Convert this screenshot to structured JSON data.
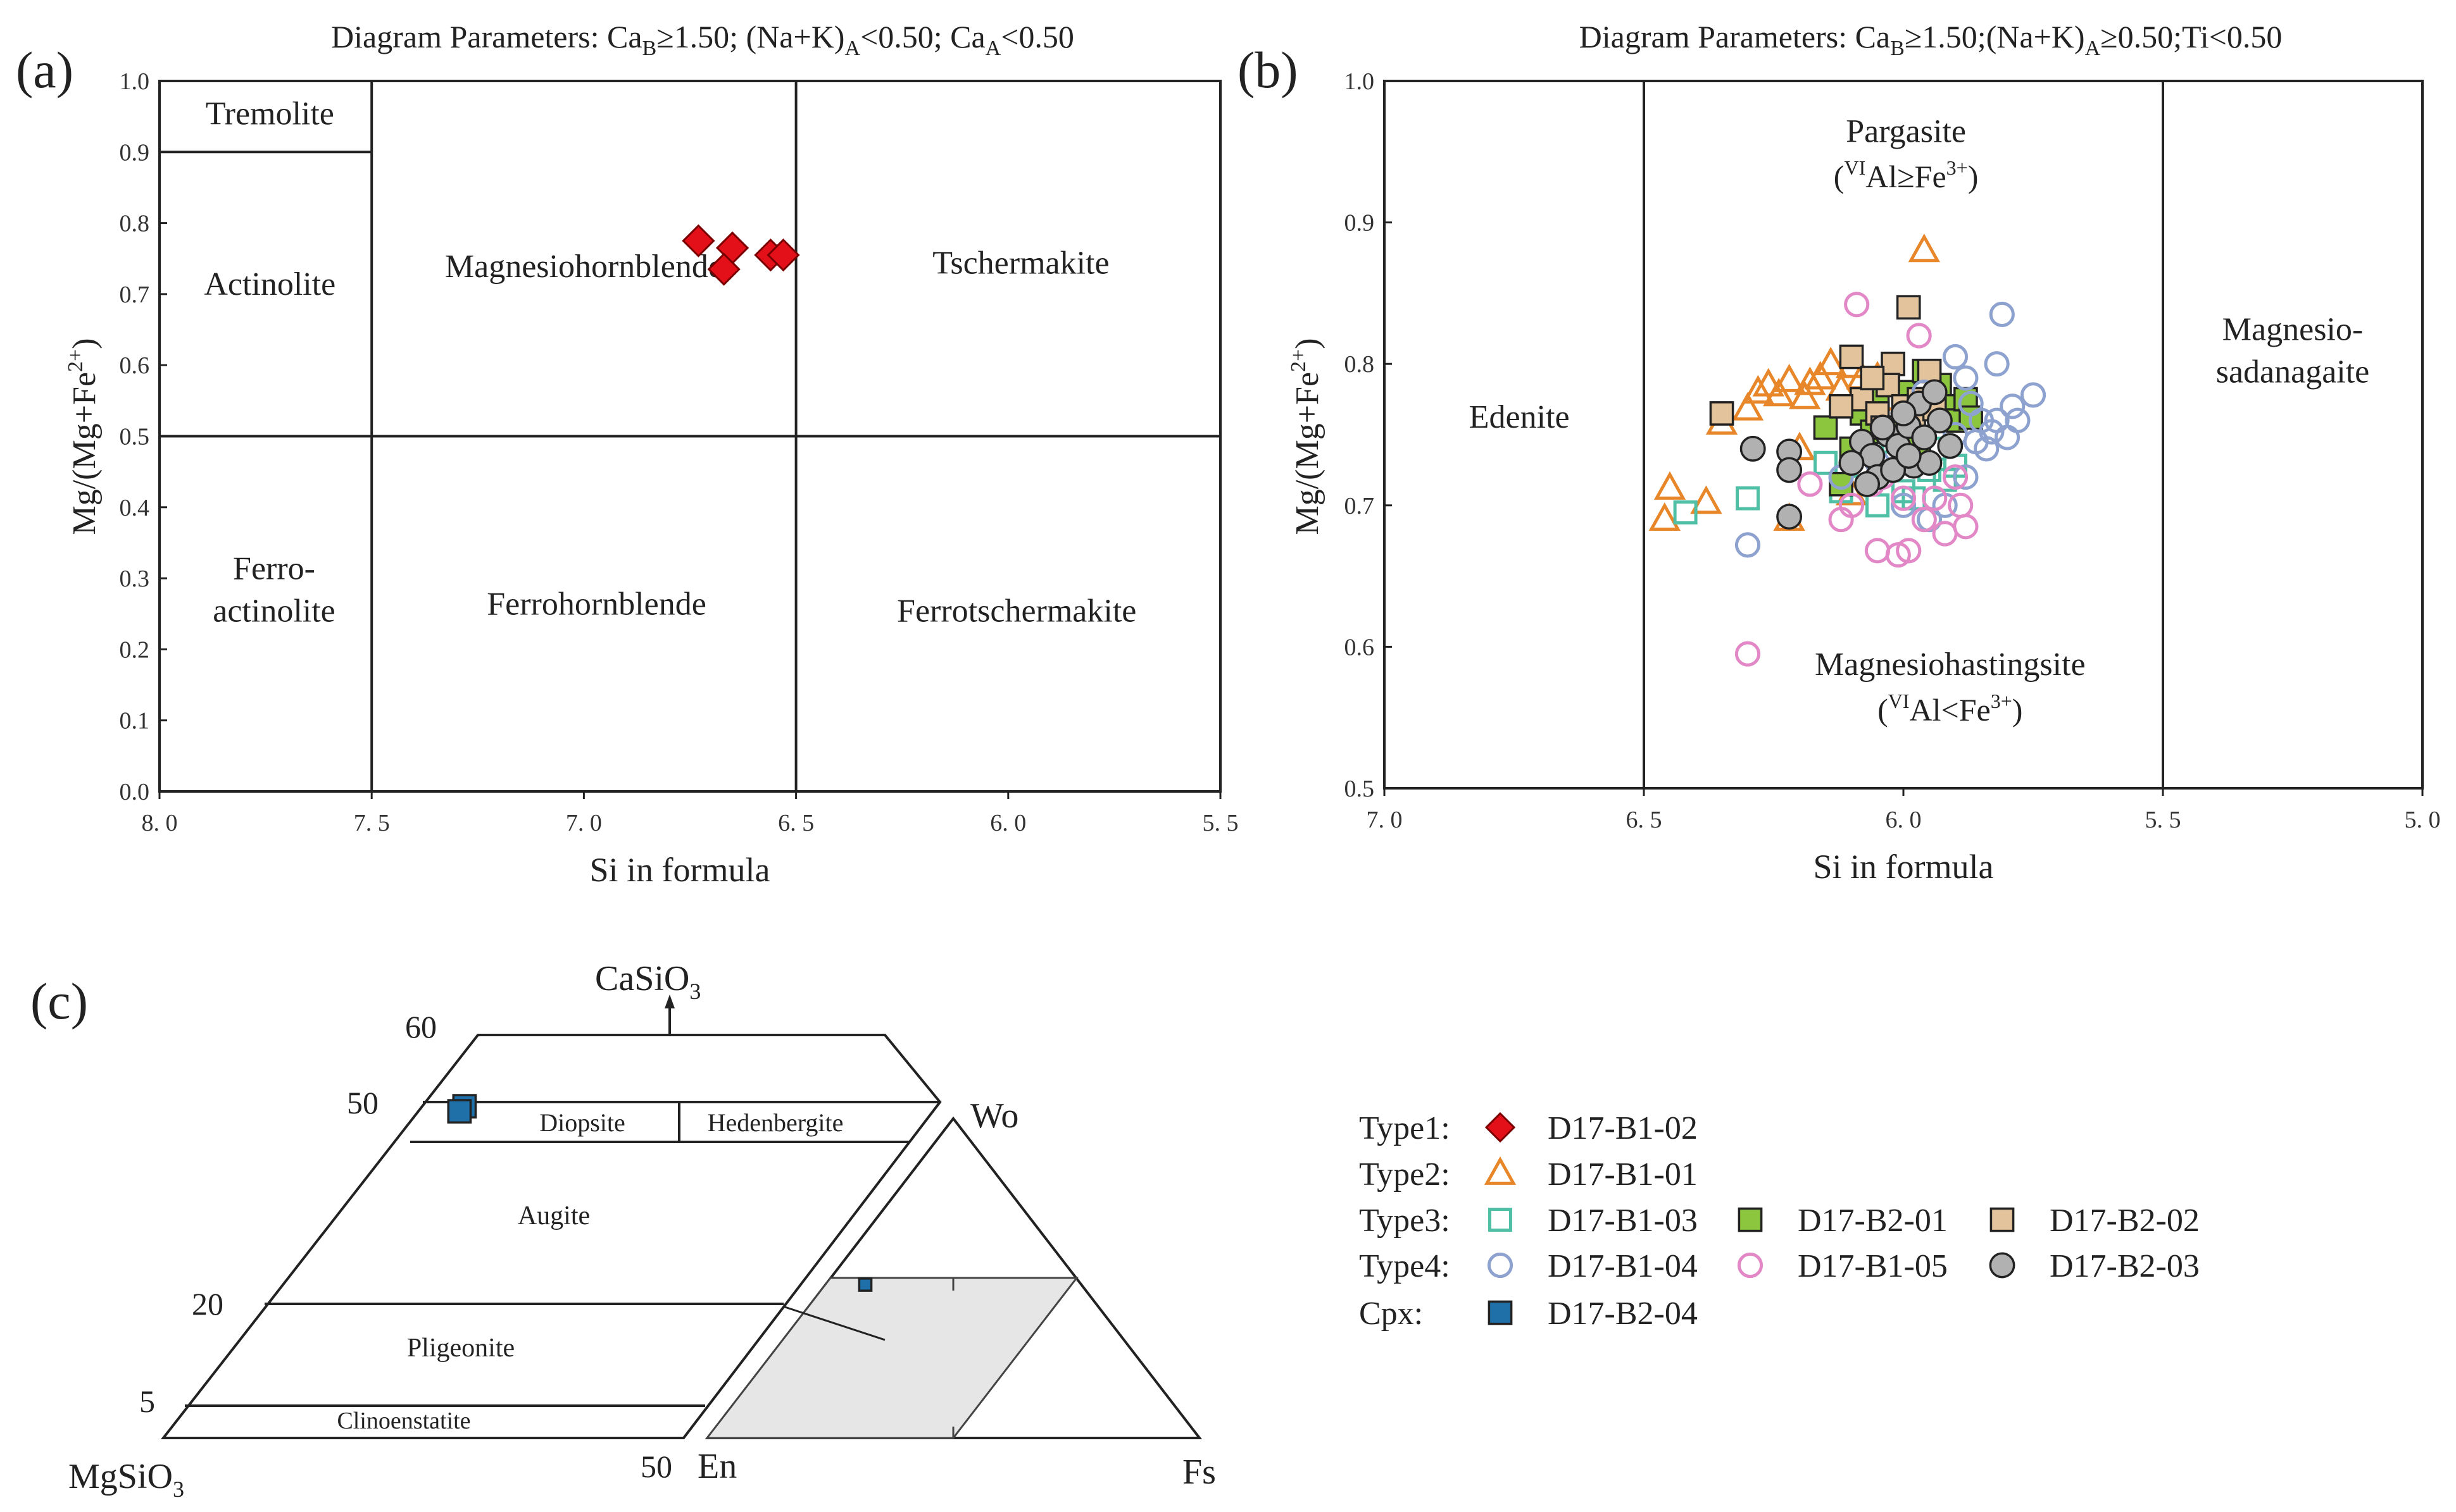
{
  "chart_data": [
    {
      "id": "a",
      "type": "scatter",
      "panel_label": "(a)",
      "title": "Diagram Parameters: Ca_B≥1.50; (Na+K)_A<0.50; Ca_A<0.50",
      "title_parts": {
        "pre": "Diagram Parameters: Ca",
        "s1": "B",
        "mid1": "≥1.50; (Na+K)",
        "s2": "A",
        "mid2": "<0.50; Ca",
        "s3": "A",
        "post": "<0.50"
      },
      "xlabel": "Si in formula",
      "ylabel_base": "Mg/(Mg+Fe",
      "ylabel_sup": "2+",
      "ylabel_end": ")",
      "xlim": [
        8.0,
        5.5
      ],
      "ylim": [
        0.0,
        1.0
      ],
      "xticks": [
        {
          "v": 8.0,
          "label": "8. 0"
        },
        {
          "v": 7.5,
          "label": "7. 5"
        },
        {
          "v": 7.0,
          "label": "7. 0"
        },
        {
          "v": 6.5,
          "label": "6. 5"
        },
        {
          "v": 6.0,
          "label": "6. 0"
        },
        {
          "v": 5.5,
          "label": "5. 5"
        }
      ],
      "yticks": [
        {
          "v": 0.0,
          "label": "0.0"
        },
        {
          "v": 0.1,
          "label": "0.1"
        },
        {
          "v": 0.2,
          "label": "0.2"
        },
        {
          "v": 0.3,
          "label": "0.3"
        },
        {
          "v": 0.4,
          "label": "0.4"
        },
        {
          "v": 0.5,
          "label": "0.5"
        },
        {
          "v": 0.6,
          "label": "0.6"
        },
        {
          "v": 0.7,
          "label": "0.7"
        },
        {
          "v": 0.8,
          "label": "0.8"
        },
        {
          "v": 0.9,
          "label": "0.9"
        },
        {
          "v": 1.0,
          "label": "1.0"
        }
      ],
      "field_boundaries": [
        {
          "x1": 7.5,
          "y1": 0.0,
          "x2": 7.5,
          "y2": 1.0
        },
        {
          "x1": 6.5,
          "y1": 0.0,
          "x2": 6.5,
          "y2": 1.0
        },
        {
          "x1": 8.0,
          "y1": 0.5,
          "x2": 5.5,
          "y2": 0.5
        },
        {
          "x1": 8.0,
          "y1": 0.9,
          "x2": 7.5,
          "y2": 0.9
        }
      ],
      "field_labels": [
        {
          "text": "Tremolite",
          "x": 7.74,
          "y": 0.955
        },
        {
          "text": "Actinolite",
          "x": 7.74,
          "y": 0.715
        },
        {
          "text": "Ferro-",
          "x": 7.73,
          "y": 0.315
        },
        {
          "text": "actinolite",
          "x": 7.73,
          "y": 0.255
        },
        {
          "text": "Magnesiohornblende",
          "x": 7.0,
          "y": 0.74
        },
        {
          "text": "Ferrohornblende",
          "x": 6.97,
          "y": 0.265
        },
        {
          "text": "Tschermakite",
          "x": 5.97,
          "y": 0.745
        },
        {
          "text": "Ferrotschermakite",
          "x": 5.98,
          "y": 0.255
        }
      ],
      "series": [
        {
          "name": "D17-B1-02",
          "group": "Type1",
          "marker": "diamond",
          "color": "#e3101a",
          "points": [
            [
              6.73,
              0.775
            ],
            [
              6.65,
              0.765
            ],
            [
              6.67,
              0.735
            ],
            [
              6.56,
              0.755
            ],
            [
              6.53,
              0.755
            ]
          ]
        }
      ]
    },
    {
      "id": "b",
      "type": "scatter",
      "panel_label": "(b)",
      "title": "Diagram Parameters: Ca_B≥1.50;(Na+K)_A≥0.50;Ti<0.50",
      "title_parts": {
        "pre": "Diagram Parameters: Ca",
        "s1": "B",
        "mid1": "≥1.50;(Na+K)",
        "s2": "A",
        "post": "≥0.50;Ti<0.50"
      },
      "xlabel": "Si in formula",
      "ylabel_base": "Mg/(Mg+Fe",
      "ylabel_sup": "2+",
      "ylabel_end": ")",
      "xlim": [
        7.0,
        5.0
      ],
      "ylim": [
        0.5,
        1.0
      ],
      "xticks": [
        {
          "v": 7.0,
          "label": "7. 0"
        },
        {
          "v": 6.5,
          "label": "6. 5"
        },
        {
          "v": 6.0,
          "label": "6. 0"
        },
        {
          "v": 5.5,
          "label": "5. 5"
        },
        {
          "v": 5.0,
          "label": "5. 0"
        }
      ],
      "yticks": [
        {
          "v": 0.5,
          "label": "0.5"
        },
        {
          "v": 0.6,
          "label": "0.6"
        },
        {
          "v": 0.7,
          "label": "0.7"
        },
        {
          "v": 0.8,
          "label": "0.8"
        },
        {
          "v": 0.9,
          "label": "0.9"
        },
        {
          "v": 1.0,
          "label": "1.0"
        }
      ],
      "field_boundaries": [
        {
          "x1": 6.5,
          "y1": 0.5,
          "x2": 6.5,
          "y2": 1.0
        },
        {
          "x1": 5.5,
          "y1": 0.5,
          "x2": 5.5,
          "y2": 1.0
        }
      ],
      "field_labels": [
        {
          "text": "Edenite",
          "x": 6.74,
          "y": 0.763
        },
        {
          "text": "Pargasite",
          "x": 5.995,
          "y": 0.965
        },
        {
          "text": "Magnesiohastingsite",
          "x": 5.91,
          "y": 0.588
        },
        {
          "text": "Magnesio-",
          "x": 5.25,
          "y": 0.825
        },
        {
          "text": "sadanagaite",
          "x": 5.25,
          "y": 0.795
        }
      ],
      "field_sublabels": [
        {
          "pre": "(",
          "sup": "VI",
          "mid": "Al≥Fe",
          "sup2": "3+",
          "post": ")",
          "x": 5.995,
          "y": 0.932
        },
        {
          "pre": "(",
          "sup": "VI",
          "mid": "Al<Fe",
          "sup2": "3+",
          "post": ")",
          "x": 5.91,
          "y": 0.555
        }
      ],
      "series": [
        {
          "name": "D17-B1-01",
          "group": "Type2",
          "marker": "triangle-open",
          "color": "#e8862a",
          "points": [
            [
              6.45,
              0.712
            ],
            [
              6.46,
              0.69
            ],
            [
              6.38,
              0.702
            ],
            [
              6.3,
              0.768
            ],
            [
              6.28,
              0.78
            ],
            [
              6.26,
              0.785
            ],
            [
              6.24,
              0.778
            ],
            [
              6.22,
              0.788
            ],
            [
              6.19,
              0.776
            ],
            [
              6.18,
              0.786
            ],
            [
              6.16,
              0.79
            ],
            [
              6.14,
              0.8
            ],
            [
              6.12,
              0.782
            ],
            [
              6.1,
              0.798
            ],
            [
              6.08,
              0.79
            ],
            [
              6.05,
              0.79
            ],
            [
              6.03,
              0.775
            ],
            [
              6.22,
              0.69
            ],
            [
              6.1,
              0.708
            ],
            [
              6.35,
              0.758
            ],
            [
              5.96,
              0.88
            ],
            [
              6.2,
              0.74
            ]
          ]
        },
        {
          "name": "D17-B1-03",
          "group": "Type3",
          "marker": "square-open",
          "color": "#4fbfa5",
          "points": [
            [
              6.3,
              0.705
            ],
            [
              6.42,
              0.695
            ],
            [
              6.12,
              0.71
            ],
            [
              6.05,
              0.7
            ],
            [
              6.0,
              0.71
            ],
            [
              5.95,
              0.725
            ],
            [
              5.92,
              0.718
            ],
            [
              5.9,
              0.728
            ],
            [
              6.08,
              0.728
            ],
            [
              6.15,
              0.73
            ],
            [
              6.02,
              0.745
            ],
            [
              5.94,
              0.74
            ],
            [
              5.98,
              0.705
            ],
            [
              6.06,
              0.74
            ]
          ]
        },
        {
          "name": "D17-B2-01",
          "group": "Type3",
          "marker": "square-filled",
          "color": "#8cc63f",
          "points": [
            [
              6.12,
              0.715
            ],
            [
              6.15,
              0.755
            ],
            [
              6.08,
              0.765
            ],
            [
              6.05,
              0.775
            ],
            [
              6.03,
              0.785
            ],
            [
              6.0,
              0.78
            ],
            [
              5.98,
              0.765
            ],
            [
              5.95,
              0.775
            ],
            [
              5.93,
              0.785
            ],
            [
              5.92,
              0.77
            ],
            [
              5.9,
              0.76
            ],
            [
              5.88,
              0.775
            ],
            [
              5.87,
              0.762
            ],
            [
              6.02,
              0.755
            ],
            [
              5.97,
              0.74
            ],
            [
              6.06,
              0.752
            ],
            [
              5.96,
              0.795
            ],
            [
              6.1,
              0.74
            ]
          ]
        },
        {
          "name": "D17-B2-02",
          "group": "Type3",
          "marker": "square-filled",
          "color": "#e3c39b",
          "points": [
            [
              6.35,
              0.765
            ],
            [
              6.1,
              0.805
            ],
            [
              6.02,
              0.8
            ],
            [
              5.99,
              0.84
            ],
            [
              5.95,
              0.795
            ],
            [
              6.08,
              0.775
            ],
            [
              6.05,
              0.765
            ],
            [
              6.03,
              0.785
            ],
            [
              6.0,
              0.77
            ],
            [
              5.98,
              0.76
            ],
            [
              6.06,
              0.79
            ],
            [
              5.97,
              0.775
            ],
            [
              6.12,
              0.77
            ],
            [
              6.04,
              0.755
            ],
            [
              5.94,
              0.768
            ]
          ]
        },
        {
          "name": "D17-B1-04",
          "group": "Type4",
          "marker": "circle-open",
          "color": "#8ea2cf",
          "points": [
            [
              6.3,
              0.672
            ],
            [
              5.81,
              0.835
            ],
            [
              5.82,
              0.8
            ],
            [
              5.79,
              0.77
            ],
            [
              5.75,
              0.778
            ],
            [
              5.9,
              0.805
            ],
            [
              5.88,
              0.79
            ],
            [
              5.85,
              0.76
            ],
            [
              5.84,
              0.74
            ],
            [
              5.8,
              0.748
            ],
            [
              5.83,
              0.752
            ],
            [
              5.86,
              0.745
            ],
            [
              5.88,
              0.72
            ],
            [
              5.92,
              0.7
            ],
            [
              5.95,
              0.69
            ],
            [
              5.9,
              0.75
            ],
            [
              6.05,
              0.73
            ],
            [
              6.12,
              0.72
            ],
            [
              5.82,
              0.76
            ],
            [
              5.87,
              0.772
            ],
            [
              5.78,
              0.76
            ],
            [
              5.96,
              0.78
            ],
            [
              6.0,
              0.7
            ]
          ]
        },
        {
          "name": "D17-B1-05",
          "group": "Type4",
          "marker": "circle-open",
          "color": "#e288c7",
          "points": [
            [
              6.3,
              0.595
            ],
            [
              6.09,
              0.842
            ],
            [
              5.97,
              0.82
            ],
            [
              6.05,
              0.668
            ],
            [
              6.01,
              0.665
            ],
            [
              5.99,
              0.668
            ],
            [
              5.92,
              0.68
            ],
            [
              5.88,
              0.685
            ],
            [
              5.89,
              0.7
            ],
            [
              5.94,
              0.705
            ],
            [
              6.0,
              0.705
            ],
            [
              6.06,
              0.715
            ],
            [
              6.12,
              0.69
            ],
            [
              6.1,
              0.7
            ],
            [
              6.04,
              0.72
            ],
            [
              5.9,
              0.72
            ],
            [
              6.18,
              0.715
            ],
            [
              5.96,
              0.69
            ]
          ]
        },
        {
          "name": "D17-B2-03",
          "group": "Type4",
          "marker": "circle-filled",
          "color": "#b1b1b1",
          "points": [
            [
              6.29,
              0.74
            ],
            [
              6.22,
              0.738
            ],
            [
              6.22,
              0.725
            ],
            [
              6.22,
              0.692
            ],
            [
              6.08,
              0.745
            ],
            [
              6.06,
              0.735
            ],
            [
              6.05,
              0.72
            ],
            [
              6.03,
              0.75
            ],
            [
              6.01,
              0.742
            ],
            [
              5.99,
              0.756
            ],
            [
              5.98,
              0.728
            ],
            [
              5.97,
              0.772
            ],
            [
              5.95,
              0.73
            ],
            [
              5.93,
              0.76
            ],
            [
              5.91,
              0.742
            ],
            [
              6.0,
              0.765
            ],
            [
              6.04,
              0.755
            ],
            [
              5.96,
              0.748
            ],
            [
              5.94,
              0.78
            ],
            [
              6.02,
              0.725
            ],
            [
              6.07,
              0.715
            ],
            [
              5.99,
              0.735
            ],
            [
              6.1,
              0.73
            ]
          ]
        }
      ]
    },
    {
      "id": "c",
      "type": "ternary",
      "panel_label": "(c)",
      "title": "CaSiO3",
      "quad_corner_labels": {
        "top": "CaSiO",
        "top_sub": "3",
        "left": "MgSiO",
        "left_sub": "3"
      },
      "quad_scale_labels": [
        "60",
        "50",
        "20",
        "5",
        "50"
      ],
      "quad_field_labels": [
        "Diopsite",
        "Hedenbergite",
        "Augite",
        "Pligeonite",
        "Clinoenstatite"
      ],
      "triangle_corner_labels": [
        "Wo",
        "En",
        "Fs"
      ],
      "series": [
        {
          "name": "D17-B2-04",
          "group": "Cpx",
          "marker": "square-filled",
          "color": "#1f6fa8",
          "composition": {
            "Wo": 49,
            "En": 46,
            "Fs": 5
          }
        }
      ]
    }
  ],
  "legend": {
    "rows": [
      {
        "label": "Type1:",
        "entries": [
          {
            "name": "D17-B1-02",
            "marker": "diamond",
            "color": "#e3101a"
          }
        ]
      },
      {
        "label": "Type2:",
        "entries": [
          {
            "name": "D17-B1-01",
            "marker": "triangle-open",
            "color": "#e8862a"
          }
        ]
      },
      {
        "label": "Type3:",
        "entries": [
          {
            "name": "D17-B1-03",
            "marker": "square-open",
            "color": "#4fbfa5"
          },
          {
            "name": "D17-B2-01",
            "marker": "square-filled",
            "color": "#8cc63f"
          },
          {
            "name": "D17-B2-02",
            "marker": "square-filled",
            "color": "#e3c39b"
          }
        ]
      },
      {
        "label": "Type4:",
        "entries": [
          {
            "name": "D17-B1-04",
            "marker": "circle-open",
            "color": "#8ea2cf"
          },
          {
            "name": "D17-B1-05",
            "marker": "circle-open",
            "color": "#e288c7"
          },
          {
            "name": "D17-B2-03",
            "marker": "circle-filled",
            "color": "#b1b1b1"
          }
        ]
      },
      {
        "label": "Cpx:",
        "entries": [
          {
            "name": "D17-B2-04",
            "marker": "square-filled",
            "color": "#1f6fa8"
          }
        ]
      }
    ]
  },
  "colors": {
    "axis": "#222222",
    "tick_text": "#333333",
    "ternary_fill": "#e6e6e6"
  }
}
